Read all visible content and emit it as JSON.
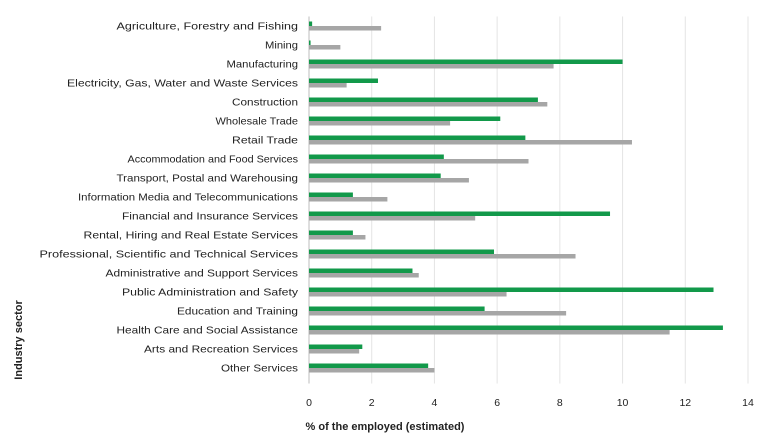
{
  "chart_data": {
    "type": "bar",
    "orientation": "horizontal",
    "xlabel": "% of the employed (estimated)",
    "ylabel": "Industry sector",
    "xlim": [
      0,
      14
    ],
    "xticks": [
      "0",
      "2",
      "4",
      "6",
      "8",
      "10",
      "12",
      "14"
    ],
    "grid": true,
    "categories": [
      "Agriculture, Forestry and Fishing",
      "Mining",
      "Manufacturing",
      "Electricity, Gas, Water and Waste Services",
      "Construction",
      "Wholesale Trade",
      "Retail Trade",
      "Accommodation and Food Services",
      "Transport, Postal and Warehousing",
      "Information Media and Telecommunications",
      "Financial and Insurance Services",
      "Rental, Hiring and Real Estate Services",
      "Professional, Scientific and Technical Services",
      "Administrative and Support Services",
      "Public Administration and Safety",
      "Education and Training",
      "Health Care and Social Assistance",
      "Arts and Recreation Services",
      "Other Services"
    ],
    "series": [
      {
        "color": "#12994a",
        "values": [
          0.1,
          0.05,
          10.0,
          2.2,
          7.3,
          6.1,
          6.9,
          4.3,
          4.2,
          1.4,
          9.6,
          1.4,
          5.9,
          3.3,
          12.9,
          5.6,
          13.2,
          1.7,
          3.8
        ]
      },
      {
        "color": "#a6a6a6",
        "values": [
          2.3,
          1.0,
          7.8,
          1.2,
          7.6,
          4.5,
          10.3,
          7.0,
          5.1,
          2.5,
          5.3,
          1.8,
          8.5,
          3.5,
          6.3,
          8.2,
          11.5,
          1.6,
          4.0
        ]
      }
    ]
  }
}
